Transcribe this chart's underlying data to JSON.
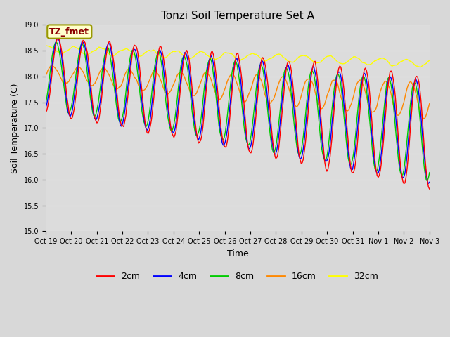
{
  "title": "Tonzi Soil Temperature Set A",
  "xlabel": "Time",
  "ylabel": "Soil Temperature (C)",
  "ylim": [
    15.0,
    19.0
  ],
  "yticks": [
    15.0,
    15.5,
    16.0,
    16.5,
    17.0,
    17.5,
    18.0,
    18.5,
    19.0
  ],
  "xtick_labels": [
    "Oct 19",
    "Oct 20",
    "Oct 21",
    "Oct 22",
    "Oct 23",
    "Oct 24",
    "Oct 25",
    "Oct 26",
    "Oct 27",
    "Oct 28",
    "Oct 29",
    "Oct 30",
    "Oct 31",
    "Nov 1",
    "Nov 2",
    "Nov 3"
  ],
  "legend_labels": [
    "2cm",
    "4cm",
    "8cm",
    "16cm",
    "32cm"
  ],
  "legend_colors": [
    "#ff0000",
    "#0000ff",
    "#00cc00",
    "#ff8800",
    "#ffff00"
  ],
  "annotation_text": "TZ_fmet",
  "annotation_color": "#8b0000",
  "annotation_bg": "#ffffcc",
  "fig_bg_color": "#d8d8d8",
  "plot_bg": "#dcdcdc",
  "title_fontsize": 11,
  "axis_fontsize": 9,
  "tick_fontsize": 7,
  "legend_fontsize": 9
}
